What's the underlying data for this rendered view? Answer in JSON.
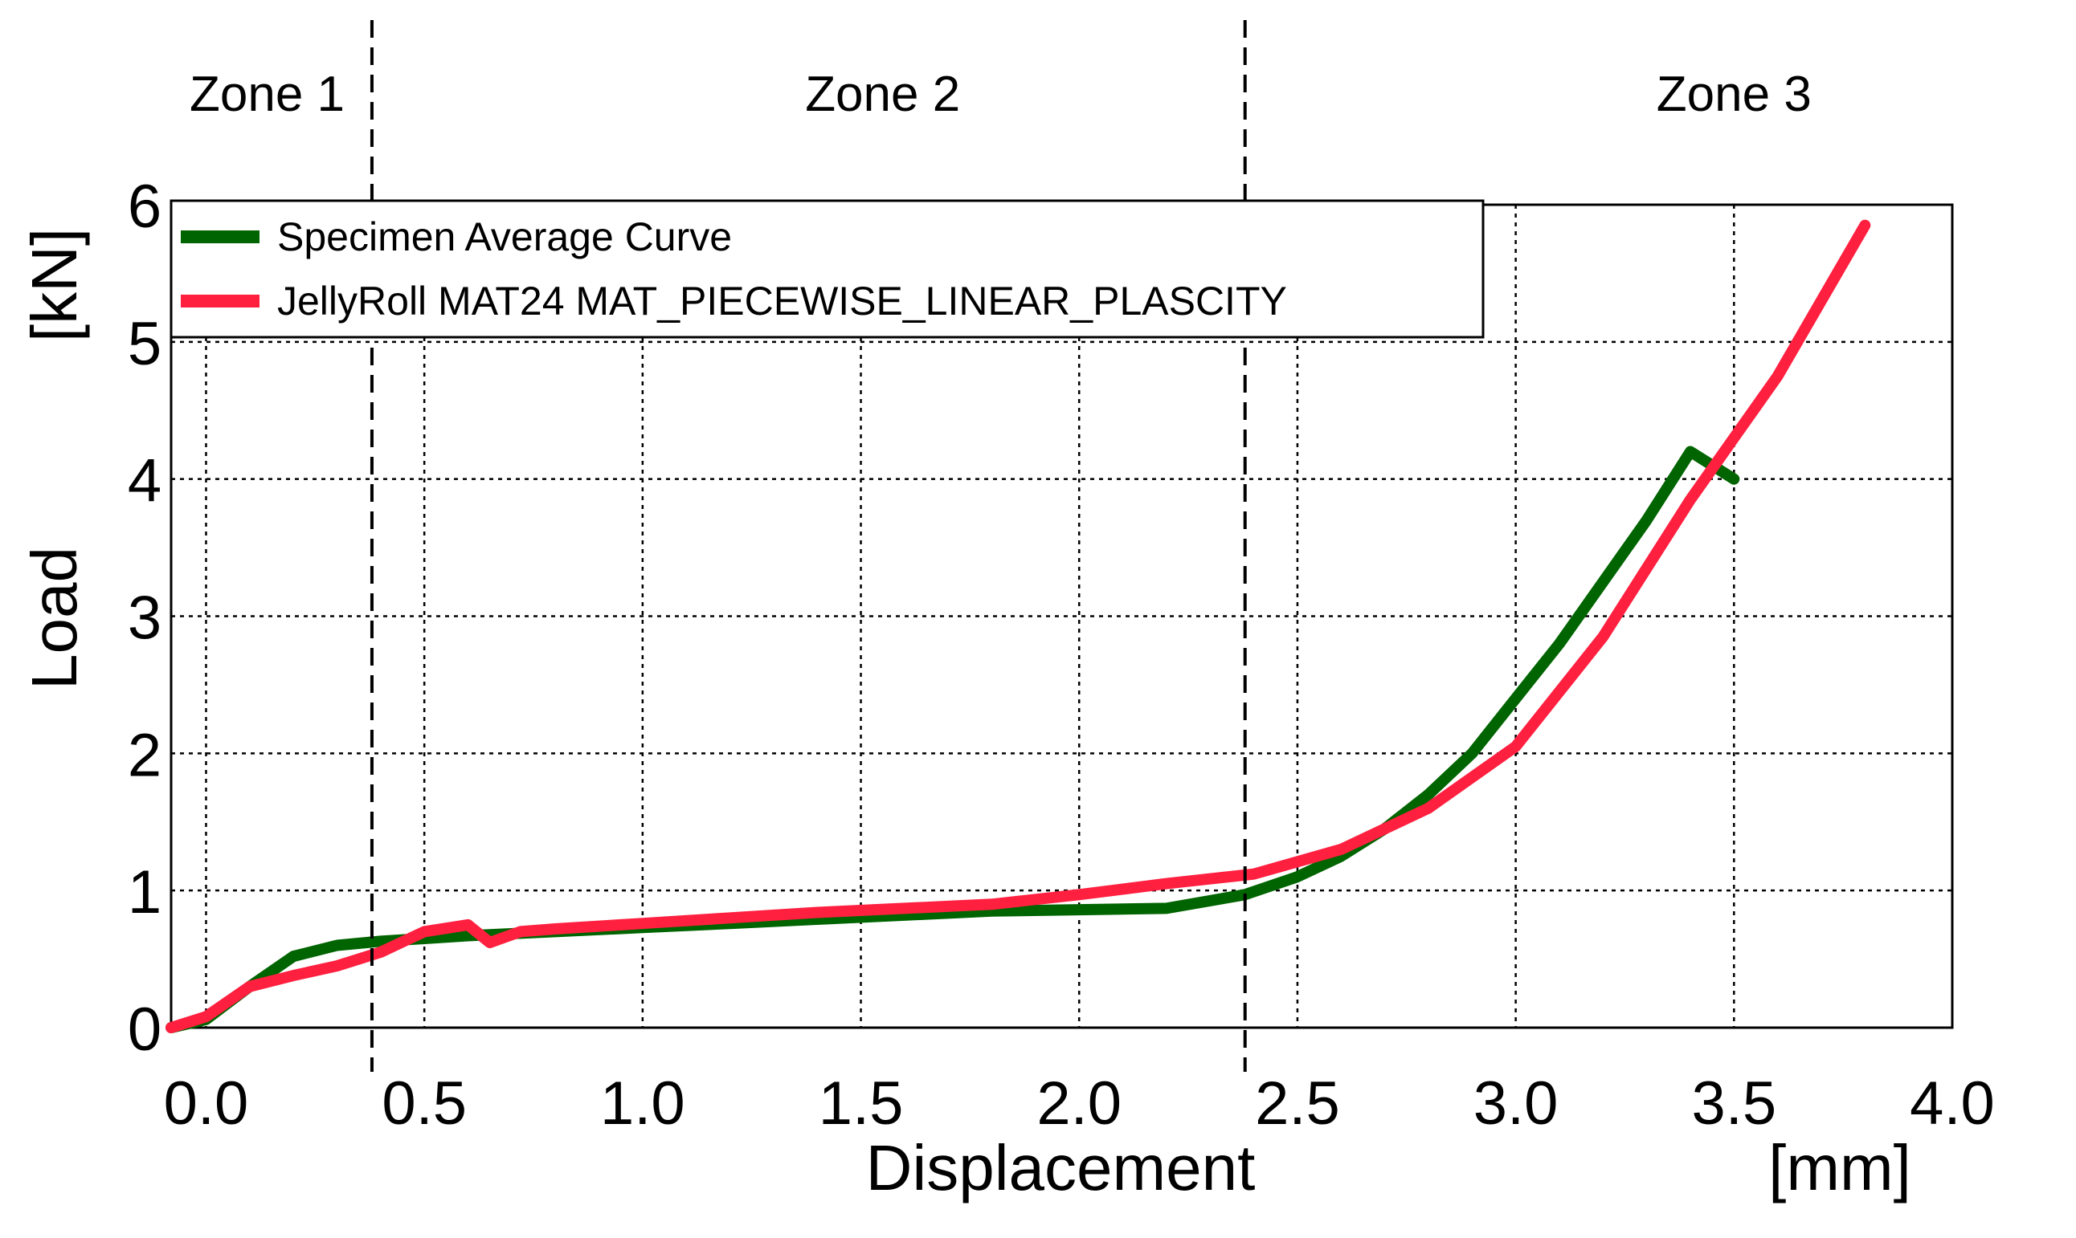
{
  "chart_data": {
    "type": "line",
    "title": "",
    "xlabel": "Displacement",
    "xunit": "[mm]",
    "ylabel": "Load",
    "yunit": "[kN]",
    "xlim": [
      -0.08,
      4.0
    ],
    "ylim": [
      0,
      6
    ],
    "grid": true,
    "xticks": [
      0.0,
      0.5,
      1.0,
      1.5,
      2.0,
      2.5,
      3.0,
      3.5,
      4.0
    ],
    "xtick_labels": [
      "0.0",
      "0.5",
      "1.0",
      "1.5",
      "2.0",
      "2.5",
      "3.0",
      "3.5",
      "4.0"
    ],
    "yticks": [
      0,
      1,
      2,
      3,
      4,
      5,
      6
    ],
    "ytick_labels": [
      "0",
      "1",
      "2",
      "3",
      "4",
      "5",
      "6"
    ],
    "zones": [
      {
        "label": "Zone 1",
        "x_center": 0.14
      },
      {
        "label": "Zone 2",
        "x_center": 1.55
      },
      {
        "label": "Zone 3",
        "x_center": 3.5
      }
    ],
    "zone_boundaries": [
      0.38,
      2.38
    ],
    "legend_position": "top-left",
    "series": [
      {
        "name": "Specimen Average Curve",
        "color": "#006400",
        "x": [
          -0.08,
          0.0,
          0.1,
          0.2,
          0.3,
          0.4,
          0.5,
          0.6,
          0.8,
          1.0,
          1.2,
          1.4,
          1.6,
          1.8,
          2.0,
          2.2,
          2.38,
          2.5,
          2.6,
          2.7,
          2.8,
          2.9,
          3.0,
          3.1,
          3.2,
          3.3,
          3.4,
          3.5
        ],
        "y": [
          0.0,
          0.06,
          0.3,
          0.52,
          0.6,
          0.63,
          0.65,
          0.67,
          0.7,
          0.73,
          0.76,
          0.79,
          0.82,
          0.85,
          0.86,
          0.87,
          0.97,
          1.1,
          1.25,
          1.45,
          1.7,
          2.0,
          2.4,
          2.8,
          3.25,
          3.7,
          4.2,
          4.0
        ]
      },
      {
        "name": "JellyRoll MAT24 MAT_PIECEWISE_LINEAR_PLASCITY",
        "color": "#ff2040",
        "x": [
          -0.08,
          0.0,
          0.1,
          0.2,
          0.3,
          0.4,
          0.5,
          0.6,
          0.65,
          0.72,
          0.8,
          1.0,
          1.2,
          1.4,
          1.6,
          1.8,
          2.0,
          2.2,
          2.4,
          2.6,
          2.8,
          3.0,
          3.2,
          3.4,
          3.6,
          3.8
        ],
        "y": [
          0.0,
          0.08,
          0.3,
          0.38,
          0.45,
          0.55,
          0.7,
          0.75,
          0.62,
          0.7,
          0.72,
          0.76,
          0.8,
          0.84,
          0.87,
          0.9,
          0.97,
          1.05,
          1.12,
          1.3,
          1.6,
          2.05,
          2.85,
          3.85,
          4.75,
          5.85
        ]
      }
    ]
  }
}
